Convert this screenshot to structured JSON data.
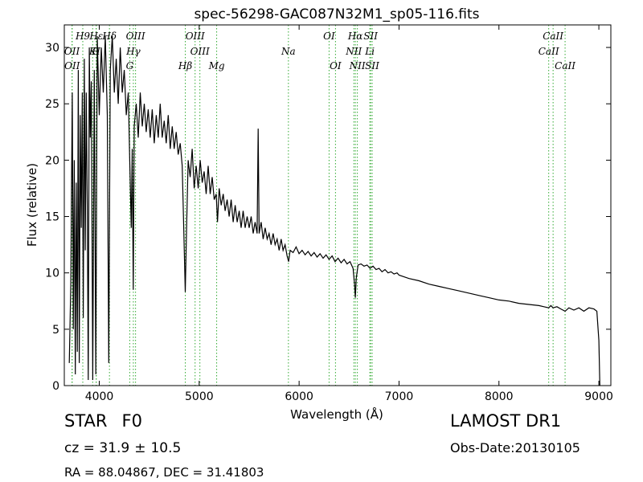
{
  "info": {
    "object_class": "STAR",
    "subclass": "F0",
    "survey": "LAMOST DR1",
    "cz_label": "cz = ",
    "cz_value": "31.9",
    "cz_pm": "±",
    "cz_err": "10.5",
    "obs_date": "Obs-Date:20130105",
    "radec": "RA = 88.04867, DEC = 31.41803"
  },
  "colors": {
    "spectrum": "#000000",
    "line_marker": "#33aa33",
    "axes": "#000000"
  },
  "chart_data": {
    "type": "line",
    "title": "spec-56298-GAC087N32M1_sp05-116.fits",
    "xlabel": "Wavelength (Å)",
    "ylabel": "Flux (relative)",
    "xlim": [
      3650,
      9120
    ],
    "ylim": [
      0,
      32
    ],
    "xticks": [
      4000,
      5000,
      6000,
      7000,
      8000,
      9000
    ],
    "yticks": [
      0,
      5,
      10,
      15,
      20,
      25,
      30
    ],
    "grid": false,
    "series": [
      {
        "points": [
          [
            3700,
            2.0
          ],
          [
            3715,
            9.0
          ],
          [
            3730,
            26.0
          ],
          [
            3740,
            5.0
          ],
          [
            3750,
            20.0
          ],
          [
            3760,
            1.0
          ],
          [
            3770,
            18.0
          ],
          [
            3780,
            3.0
          ],
          [
            3790,
            28.0
          ],
          [
            3800,
            2.0
          ],
          [
            3810,
            24.0
          ],
          [
            3820,
            14.0
          ],
          [
            3830,
            26.0
          ],
          [
            3840,
            6.0
          ],
          [
            3850,
            29.0
          ],
          [
            3860,
            12.0
          ],
          [
            3870,
            26.0
          ],
          [
            3880,
            16.0
          ],
          [
            3890,
            0.5
          ],
          [
            3900,
            30.0
          ],
          [
            3910,
            22.0
          ],
          [
            3920,
            27.0
          ],
          [
            3935,
            0.5
          ],
          [
            3950,
            28.0
          ],
          [
            3965,
            1.0
          ],
          [
            3980,
            31.0
          ],
          [
            4000,
            24.0
          ],
          [
            4020,
            30.0
          ],
          [
            4040,
            26.0
          ],
          [
            4060,
            31.0
          ],
          [
            4080,
            24.0
          ],
          [
            4095,
            2.0
          ],
          [
            4110,
            28.0
          ],
          [
            4130,
            31.0
          ],
          [
            4150,
            26.0
          ],
          [
            4170,
            29.0
          ],
          [
            4190,
            25.0
          ],
          [
            4210,
            30.0
          ],
          [
            4230,
            26.0
          ],
          [
            4250,
            28.0
          ],
          [
            4270,
            24.0
          ],
          [
            4290,
            26.0
          ],
          [
            4305,
            20.0
          ],
          [
            4320,
            14.0
          ],
          [
            4330,
            21.0
          ],
          [
            4340,
            8.5
          ],
          [
            4350,
            23.0
          ],
          [
            4370,
            25.0
          ],
          [
            4390,
            22.0
          ],
          [
            4410,
            26.0
          ],
          [
            4430,
            23.0
          ],
          [
            4450,
            25.0
          ],
          [
            4470,
            22.5
          ],
          [
            4490,
            24.5
          ],
          [
            4510,
            22.0
          ],
          [
            4530,
            24.5
          ],
          [
            4550,
            21.5
          ],
          [
            4570,
            24.0
          ],
          [
            4590,
            22.0
          ],
          [
            4610,
            25.0
          ],
          [
            4630,
            22.0
          ],
          [
            4650,
            23.5
          ],
          [
            4670,
            21.5
          ],
          [
            4690,
            24.0
          ],
          [
            4710,
            21.0
          ],
          [
            4730,
            23.0
          ],
          [
            4750,
            21.0
          ],
          [
            4770,
            22.5
          ],
          [
            4790,
            20.5
          ],
          [
            4810,
            21.5
          ],
          [
            4830,
            19.5
          ],
          [
            4845,
            14.0
          ],
          [
            4861,
            8.3
          ],
          [
            4875,
            14.5
          ],
          [
            4890,
            20.0
          ],
          [
            4910,
            18.5
          ],
          [
            4930,
            21.0
          ],
          [
            4950,
            17.5
          ],
          [
            4970,
            19.5
          ],
          [
            4990,
            17.5
          ],
          [
            5010,
            20.0
          ],
          [
            5030,
            18.0
          ],
          [
            5050,
            19.0
          ],
          [
            5070,
            17.0
          ],
          [
            5090,
            19.5
          ],
          [
            5110,
            17.0
          ],
          [
            5130,
            18.5
          ],
          [
            5150,
            16.5
          ],
          [
            5170,
            17.0
          ],
          [
            5183,
            14.5
          ],
          [
            5200,
            17.5
          ],
          [
            5220,
            16.0
          ],
          [
            5240,
            17.0
          ],
          [
            5260,
            15.5
          ],
          [
            5280,
            16.5
          ],
          [
            5300,
            15.0
          ],
          [
            5320,
            16.5
          ],
          [
            5340,
            14.5
          ],
          [
            5360,
            16.0
          ],
          [
            5380,
            14.5
          ],
          [
            5400,
            15.5
          ],
          [
            5420,
            14.0
          ],
          [
            5440,
            15.5
          ],
          [
            5460,
            14.0
          ],
          [
            5480,
            15.0
          ],
          [
            5500,
            14.0
          ],
          [
            5520,
            15.0
          ],
          [
            5540,
            13.5
          ],
          [
            5560,
            14.5
          ],
          [
            5580,
            13.5
          ],
          [
            5590,
            22.8
          ],
          [
            5600,
            13.5
          ],
          [
            5620,
            14.5
          ],
          [
            5640,
            13.0
          ],
          [
            5660,
            14.0
          ],
          [
            5680,
            13.0
          ],
          [
            5700,
            13.5
          ],
          [
            5720,
            12.5
          ],
          [
            5740,
            13.5
          ],
          [
            5760,
            12.5
          ],
          [
            5780,
            13.0
          ],
          [
            5800,
            12.0
          ],
          [
            5820,
            13.0
          ],
          [
            5840,
            12.0
          ],
          [
            5860,
            12.5
          ],
          [
            5880,
            11.5
          ],
          [
            5895,
            11.0
          ],
          [
            5910,
            12.0
          ],
          [
            5940,
            11.8
          ],
          [
            5970,
            12.3
          ],
          [
            6000,
            11.7
          ],
          [
            6030,
            12.0
          ],
          [
            6060,
            11.6
          ],
          [
            6090,
            11.9
          ],
          [
            6120,
            11.5
          ],
          [
            6150,
            11.8
          ],
          [
            6180,
            11.4
          ],
          [
            6210,
            11.7
          ],
          [
            6240,
            11.3
          ],
          [
            6270,
            11.6
          ],
          [
            6300,
            11.2
          ],
          [
            6330,
            11.5
          ],
          [
            6360,
            11.0
          ],
          [
            6390,
            11.3
          ],
          [
            6420,
            10.9
          ],
          [
            6450,
            11.2
          ],
          [
            6480,
            10.8
          ],
          [
            6510,
            11.0
          ],
          [
            6540,
            10.4
          ],
          [
            6555,
            9.0
          ],
          [
            6563,
            7.8
          ],
          [
            6572,
            9.5
          ],
          [
            6590,
            10.7
          ],
          [
            6620,
            10.8
          ],
          [
            6650,
            10.6
          ],
          [
            6680,
            10.7
          ],
          [
            6710,
            10.4
          ],
          [
            6740,
            10.6
          ],
          [
            6770,
            10.3
          ],
          [
            6800,
            10.4
          ],
          [
            6830,
            10.1
          ],
          [
            6860,
            10.3
          ],
          [
            6890,
            10.0
          ],
          [
            6920,
            10.1
          ],
          [
            6950,
            9.9
          ],
          [
            6980,
            10.0
          ],
          [
            7000,
            9.8
          ],
          [
            7100,
            9.5
          ],
          [
            7200,
            9.3
          ],
          [
            7300,
            9.0
          ],
          [
            7400,
            8.8
          ],
          [
            7500,
            8.6
          ],
          [
            7600,
            8.4
          ],
          [
            7700,
            8.2
          ],
          [
            7800,
            8.0
          ],
          [
            7900,
            7.8
          ],
          [
            8000,
            7.6
          ],
          [
            8100,
            7.5
          ],
          [
            8200,
            7.3
          ],
          [
            8300,
            7.2
          ],
          [
            8400,
            7.1
          ],
          [
            8450,
            7.0
          ],
          [
            8498,
            6.9
          ],
          [
            8520,
            7.1
          ],
          [
            8542,
            6.9
          ],
          [
            8580,
            7.0
          ],
          [
            8620,
            6.8
          ],
          [
            8662,
            6.6
          ],
          [
            8700,
            6.9
          ],
          [
            8750,
            6.7
          ],
          [
            8800,
            6.9
          ],
          [
            8850,
            6.6
          ],
          [
            8900,
            6.9
          ],
          [
            8950,
            6.8
          ],
          [
            8980,
            6.6
          ],
          [
            9000,
            4.0
          ],
          [
            9010,
            0.0
          ]
        ]
      }
    ],
    "lines": [
      {
        "label": "H9",
        "wl": 3835,
        "row": 0
      },
      {
        "label": "OII",
        "wl": 3727,
        "row": 1
      },
      {
        "label": "OII",
        "wl": 3729,
        "row": 2
      },
      {
        "label": "K",
        "wl": 3934,
        "row": 1
      },
      {
        "label": "H",
        "wl": 3969,
        "row": 1
      },
      {
        "label": "Hε",
        "wl": 3970,
        "row": 0
      },
      {
        "label": "Hδ",
        "wl": 4102,
        "row": 0
      },
      {
        "label": "OIII",
        "wl": 4363,
        "row": 0
      },
      {
        "label": "Hγ",
        "wl": 4341,
        "row": 1
      },
      {
        "label": "G",
        "wl": 4305,
        "row": 2
      },
      {
        "label": "OIII",
        "wl": 4959,
        "row": 0
      },
      {
        "label": "OIII",
        "wl": 5007,
        "row": 1
      },
      {
        "label": "Hβ",
        "wl": 4861,
        "row": 2
      },
      {
        "label": "Mg",
        "wl": 5175,
        "row": 2
      },
      {
        "label": "Na",
        "wl": 5893,
        "row": 1
      },
      {
        "label": "OI",
        "wl": 6300,
        "row": 0
      },
      {
        "label": "OI",
        "wl": 6364,
        "row": 2
      },
      {
        "label": "Hα",
        "wl": 6563,
        "row": 0
      },
      {
        "label": "SII",
        "wl": 6716,
        "row": 0
      },
      {
        "label": "NII",
        "wl": 6548,
        "row": 1
      },
      {
        "label": "Li",
        "wl": 6708,
        "row": 1
      },
      {
        "label": "NII",
        "wl": 6583,
        "row": 2
      },
      {
        "label": "SII",
        "wl": 6731,
        "row": 2
      },
      {
        "label": "CaII",
        "wl": 8542,
        "row": 0
      },
      {
        "label": "CaII",
        "wl": 8498,
        "row": 1
      },
      {
        "label": "CaII",
        "wl": 8662,
        "row": 2
      }
    ]
  }
}
